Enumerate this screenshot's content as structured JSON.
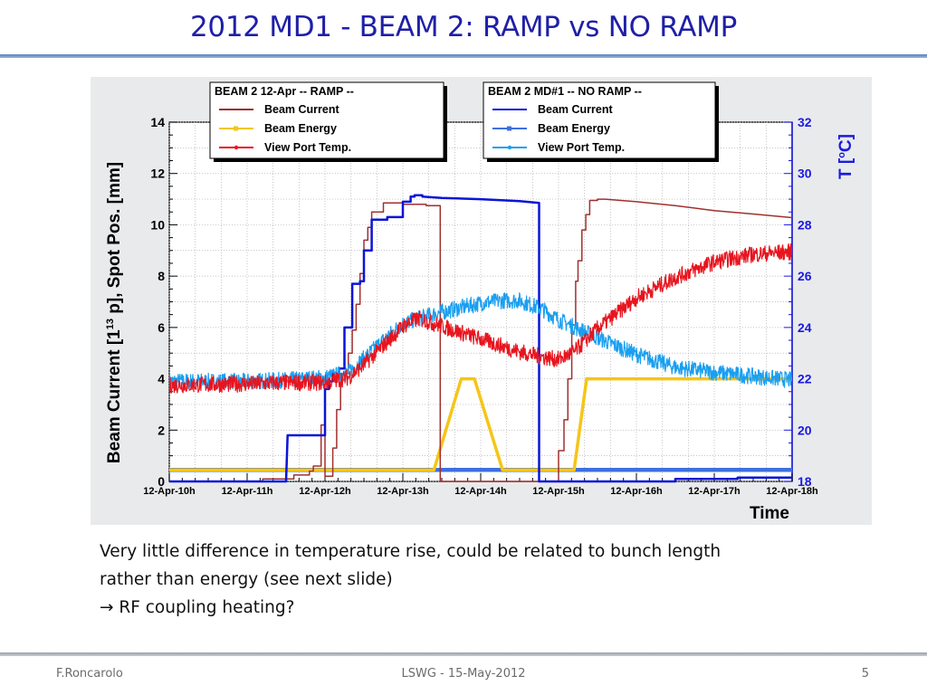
{
  "slide": {
    "title": "2012 MD1 - BEAM 2: RAMP vs NO RAMP",
    "body_lines": [
      "Very little difference in temperature rise, could be related to bunch length",
      "rather than energy (see next slide)",
      "→ RF coupling heating?"
    ],
    "footer": {
      "author": "F.Roncarolo",
      "event": "LSWG - 15-May-2012",
      "page": "5"
    }
  },
  "chart_data": {
    "type": "line",
    "xlabel": "Time",
    "ylabel": "Beam Current [1^13 p],  Spot Pos. [mm]",
    "ylabel_parts": {
      "main": "Beam Current [1",
      "sup": "13",
      "rest": " p],  Spot Pos. [mm]"
    },
    "y2label": "T [°C]",
    "y2label_parts": {
      "main": "T [",
      "sup": "o",
      "rest": "C]"
    },
    "x_tick_labels": [
      "12-Apr-10h",
      "12-Apr-11h",
      "12-Apr-12h",
      "12-Apr-13h",
      "12-Apr-14h",
      "12-Apr-15h",
      "12-Apr-16h",
      "12-Apr-17h",
      "12-Apr-18h"
    ],
    "xlim_hours": [
      10,
      18
    ],
    "ylim": [
      0,
      14
    ],
    "y_ticks": [
      0,
      2,
      4,
      6,
      8,
      10,
      12,
      14
    ],
    "y2lim": [
      18,
      32
    ],
    "y2_ticks": [
      18,
      20,
      22,
      24,
      26,
      28,
      30,
      32
    ],
    "grid": true,
    "legends": [
      {
        "title": "BEAM 2 12-Apr -- RAMP --",
        "entries": [
          {
            "label": "Beam Current",
            "color": "#a0302e",
            "marker": "none"
          },
          {
            "label": "Beam Energy",
            "color": "#f5c518",
            "marker": "square"
          },
          {
            "label": "View Port Temp.",
            "color": "#e8141e",
            "marker": "star"
          }
        ]
      },
      {
        "title": "BEAM 2 MD#1 -- NO RAMP --",
        "entries": [
          {
            "label": "Beam Current",
            "color": "#0a14d8",
            "marker": "none"
          },
          {
            "label": "Beam Energy",
            "color": "#3e6fe0",
            "marker": "square"
          },
          {
            "label": "View Port Temp.",
            "color": "#1a9ff0",
            "marker": "star"
          }
        ]
      }
    ],
    "series": [
      {
        "name": "Beam Current",
        "group": "BEAM 2 12-Apr -- RAMP --",
        "axis": "left",
        "color": "#a0302e",
        "width": 1.5,
        "x": [
          10.0,
          11.2,
          11.2,
          11.6,
          11.6,
          11.8,
          11.8,
          11.85,
          11.85,
          11.95,
          11.95,
          12.0,
          12.0,
          12.1,
          12.1,
          12.15,
          12.15,
          12.2,
          12.2,
          12.3,
          12.3,
          12.35,
          12.35,
          12.4,
          12.4,
          12.45,
          12.45,
          12.5,
          12.5,
          12.55,
          12.55,
          12.6,
          12.6,
          12.75,
          12.75,
          13.0,
          13.0,
          13.3,
          13.3,
          13.48,
          13.48,
          15.0,
          15.0,
          15.07,
          15.07,
          15.12,
          15.12,
          15.17,
          15.17,
          15.22,
          15.22,
          15.25,
          15.25,
          15.3,
          15.3,
          15.35,
          15.35,
          15.4,
          15.4,
          15.5,
          15.5,
          15.6,
          16.0,
          16.5,
          17.0,
          17.5,
          18.0
        ],
        "y": [
          0,
          0,
          0.1,
          0.1,
          0.25,
          0.25,
          0.4,
          0.4,
          0.6,
          0.6,
          2.2,
          2.2,
          0.2,
          0.2,
          1.3,
          1.3,
          2.8,
          2.8,
          4.2,
          4.2,
          5.0,
          5.0,
          5.9,
          5.9,
          6.9,
          6.9,
          8.1,
          8.1,
          9.4,
          9.4,
          9.9,
          9.9,
          10.5,
          10.5,
          10.85,
          10.85,
          10.8,
          10.8,
          10.75,
          10.75,
          0,
          0,
          1.2,
          1.2,
          2.4,
          2.4,
          4.0,
          4.0,
          6.1,
          6.1,
          7.8,
          7.8,
          8.6,
          8.6,
          9.8,
          9.8,
          10.4,
          10.4,
          10.95,
          10.95,
          11.0,
          11.0,
          10.9,
          10.75,
          10.55,
          10.42,
          10.28
        ]
      },
      {
        "name": "Beam Energy",
        "group": "BEAM 2 12-Apr -- RAMP --",
        "axis": "left",
        "color": "#f5c518",
        "width": 3.5,
        "x": [
          10.0,
          12.6,
          13.4,
          13.75,
          13.92,
          14.28,
          14.6,
          15.2,
          15.36,
          15.7,
          16.6,
          17.5,
          18.0
        ],
        "y": [
          0.45,
          0.45,
          0.45,
          4.0,
          4.0,
          0.45,
          0.45,
          0.45,
          4.0,
          4.0,
          4.0,
          4.0,
          4.0
        ]
      },
      {
        "name": "View Port Temp.",
        "group": "BEAM 2 12-Apr -- RAMP --",
        "axis": "right",
        "color": "#e8141e",
        "width": 1.2,
        "noise": 0.32,
        "x": [
          10.0,
          11.0,
          11.5,
          12.0,
          12.3,
          12.5,
          12.8,
          13.0,
          13.2,
          13.5,
          14.0,
          14.5,
          14.8,
          15.0,
          15.2,
          15.5,
          16.0,
          16.5,
          17.0,
          17.5,
          18.0
        ],
        "y": [
          21.75,
          21.8,
          21.85,
          21.85,
          22.05,
          22.55,
          23.45,
          24.05,
          24.35,
          24.05,
          23.55,
          23.05,
          22.85,
          22.75,
          23.05,
          23.95,
          25.15,
          25.95,
          26.55,
          26.85,
          26.95
        ]
      },
      {
        "name": "Beam Current",
        "group": "BEAM 2 MD#1 -- NO RAMP --",
        "axis": "left",
        "color": "#0a14d8",
        "width": 2.5,
        "x": [
          10.0,
          11.5,
          11.52,
          11.52,
          12.0,
          12.0,
          12.05,
          12.05,
          12.1,
          12.1,
          12.18,
          12.18,
          12.25,
          12.25,
          12.35,
          12.35,
          12.45,
          12.45,
          12.5,
          12.5,
          12.6,
          12.6,
          12.8,
          12.8,
          13.0,
          13.0,
          13.1,
          13.1,
          13.15,
          13.15,
          13.25,
          13.25,
          13.5,
          14.0,
          14.5,
          14.75,
          14.75,
          16.5,
          16.5,
          17.0,
          17.0,
          17.3,
          17.3,
          18.0
        ],
        "y": [
          0,
          0,
          1.8,
          1.8,
          1.8,
          3.6,
          3.6,
          3.9,
          3.9,
          4.2,
          4.2,
          4.4,
          4.4,
          6.0,
          6.0,
          7.7,
          7.7,
          7.8,
          7.8,
          9.0,
          9.0,
          10.2,
          10.2,
          10.3,
          10.3,
          10.9,
          10.9,
          11.1,
          11.1,
          11.15,
          11.15,
          11.1,
          11.05,
          11.0,
          10.92,
          10.85,
          0,
          0,
          0.1,
          0.1,
          0.1,
          0.1,
          0.15,
          0.15
        ]
      },
      {
        "name": "Beam Energy",
        "group": "BEAM 2 MD#1 -- NO RAMP --",
        "axis": "left",
        "color": "#3e6fe0",
        "width": 4.5,
        "x": [
          10.0,
          18.0
        ],
        "y": [
          0.45,
          0.45
        ]
      },
      {
        "name": "View Port Temp.",
        "group": "BEAM 2 MD#1 -- NO RAMP --",
        "axis": "right",
        "color": "#1a9ff0",
        "width": 1.2,
        "noise": 0.32,
        "x": [
          10.0,
          11.0,
          11.5,
          12.0,
          12.3,
          12.5,
          12.8,
          13.0,
          13.2,
          13.5,
          14.0,
          14.3,
          14.5,
          14.8,
          15.0,
          15.5,
          16.0,
          16.5,
          17.0,
          17.5,
          18.0
        ],
        "y": [
          21.9,
          21.9,
          21.95,
          22.05,
          22.25,
          22.8,
          23.65,
          24.15,
          24.35,
          24.6,
          24.95,
          25.05,
          25.05,
          24.7,
          24.3,
          23.6,
          22.95,
          22.45,
          22.25,
          22.1,
          21.95
        ]
      }
    ]
  }
}
